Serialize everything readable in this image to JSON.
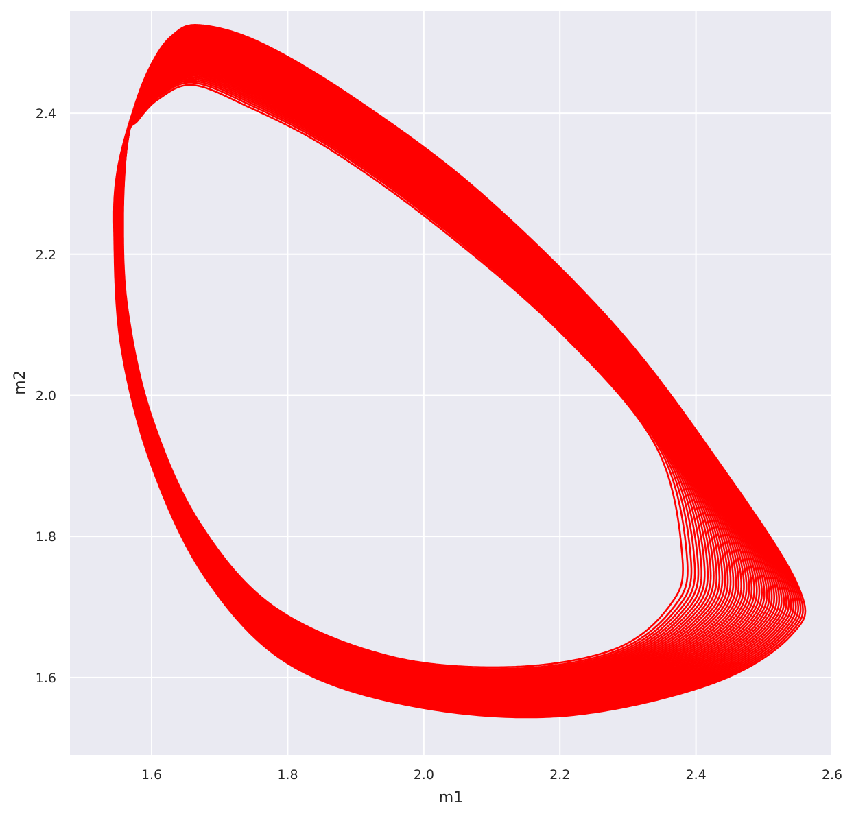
{
  "chart_data": {
    "type": "line",
    "title": "",
    "xlabel": "m1",
    "ylabel": "m2",
    "xlim": [
      1.48,
      2.6
    ],
    "ylim": [
      1.49,
      2.545
    ],
    "xticks": [
      1.6,
      1.8,
      2.0,
      2.2,
      2.4,
      2.6
    ],
    "yticks": [
      1.6,
      1.8,
      2.0,
      2.2,
      2.4
    ],
    "xtick_labels": [
      "1.6",
      "1.8",
      "2.0",
      "2.2",
      "2.4",
      "2.6"
    ],
    "ytick_labels": [
      "1.6",
      "1.8",
      "2.0",
      "2.2",
      "2.4"
    ],
    "grid": true,
    "line_color": "#ff0000",
    "background_color": "#eaeaf2",
    "series": [
      {
        "x": [
          1.565,
          1.58,
          1.61,
          1.66,
          1.74,
          1.86,
          2.02,
          2.2,
          2.34,
          2.38,
          2.36,
          2.28,
          2.13,
          1.95,
          1.78,
          1.67,
          1.6,
          1.565,
          1.558,
          1.565
        ],
        "y": [
          2.365,
          2.39,
          2.42,
          2.44,
          2.41,
          2.35,
          2.24,
          2.09,
          1.93,
          1.77,
          1.7,
          1.64,
          1.615,
          1.63,
          1.7,
          1.82,
          1.97,
          2.12,
          2.25,
          2.365
        ]
      },
      {
        "x": [
          1.575,
          1.6,
          1.63,
          1.67,
          1.76,
          1.9,
          2.08,
          2.28,
          2.43,
          2.55,
          2.54,
          2.42,
          2.2,
          1.98,
          1.8,
          1.68,
          1.6,
          1.555,
          1.545,
          1.55,
          1.575
        ],
        "y": [
          2.41,
          2.47,
          2.51,
          2.525,
          2.5,
          2.42,
          2.29,
          2.1,
          1.91,
          1.73,
          1.66,
          1.59,
          1.545,
          1.56,
          1.62,
          1.74,
          1.9,
          2.07,
          2.23,
          2.32,
          2.41
        ]
      }
    ],
    "rendering": "dense_limit_cycle_band_between_inner_and_outer_orbit"
  }
}
